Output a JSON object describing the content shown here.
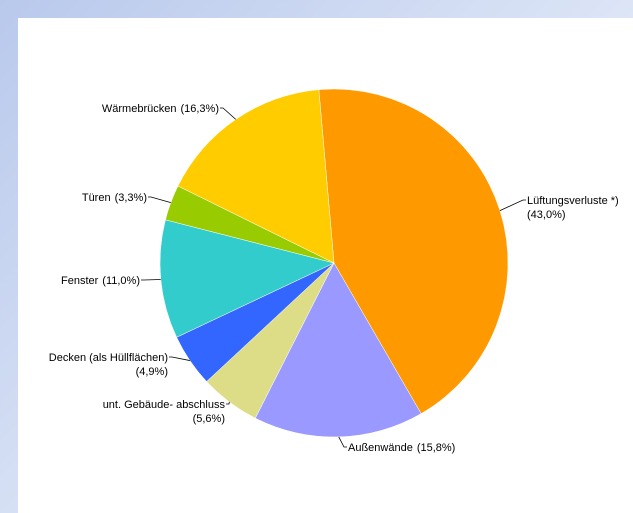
{
  "chart_data": {
    "type": "pie",
    "categories": [
      "Lüftungsverluste *)",
      "Außenwände",
      "unt. Gebäude- abschluss",
      "Decken (als Hüllflächen)",
      "Fenster",
      "Türen",
      "Wärmebrücken"
    ],
    "values": [
      43.0,
      15.8,
      5.6,
      4.9,
      11.0,
      3.3,
      16.3
    ],
    "value_labels": [
      "(43,0%)",
      "(15,8%)",
      "(5,6%)",
      "(4,9%)",
      "(11,0%)",
      "(3,3%)",
      "(16,3%)"
    ],
    "colors": [
      "#ff9900",
      "#9999ff",
      "#dddd88",
      "#3366ff",
      "#33cccc",
      "#99cc00",
      "#ffcc00"
    ]
  }
}
